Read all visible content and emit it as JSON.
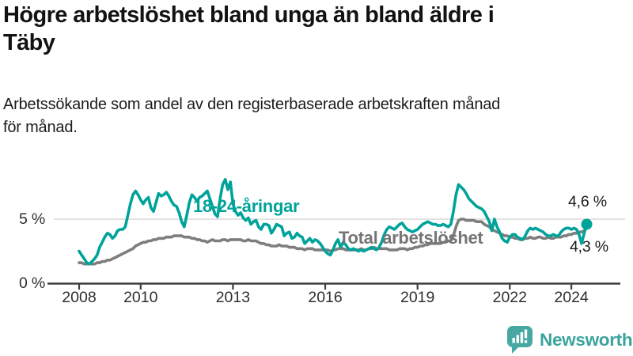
{
  "header": {
    "title": "Högre arbetslöshet bland unga än bland äldre i\nTäby",
    "subtitle": "Arbetssökande som andel av den registerbaserade arbetskraften månad\nför månad."
  },
  "chart_data": {
    "type": "line",
    "unit": "%",
    "frequency": "monthly",
    "x_start": "2008-01",
    "x_end": "2024-07",
    "grid": "horizontal-5-only",
    "ylim": [
      0,
      8.8
    ],
    "yticks": [
      {
        "value": 0,
        "label": "0 %"
      },
      {
        "value": 5,
        "label": "5 %"
      }
    ],
    "xticks": [
      "2008",
      "2010",
      "2013",
      "2016",
      "2019",
      "2022",
      "2024"
    ],
    "gridline_color": "#d9d9d9",
    "axis_color": "#3d3d3d",
    "tick_label_color": "#2f2f2f",
    "series": [
      {
        "name": "18-24-åringar",
        "color": "#00a39a",
        "end_label": "4,6 %",
        "end_value": 4.6,
        "end_dot": true,
        "values": [
          2.5,
          2.2,
          1.9,
          1.6,
          1.5,
          1.7,
          1.9,
          2.2,
          2.8,
          3.2,
          3.6,
          3.9,
          3.8,
          3.5,
          3.7,
          4.1,
          4.2,
          4.2,
          4.4,
          5.3,
          6.2,
          6.9,
          7.2,
          6.9,
          6.5,
          6.2,
          6.5,
          6.7,
          5.9,
          5.6,
          6.3,
          7.0,
          6.8,
          6.9,
          7.1,
          6.8,
          6.4,
          6.1,
          6.0,
          5.5,
          4.8,
          4.4,
          5.3,
          6.3,
          6.9,
          6.7,
          6.4,
          6.7,
          6.8,
          7.0,
          7.2,
          6.6,
          6.0,
          5.4,
          5.2,
          6.6,
          7.7,
          8.1,
          7.3,
          7.9,
          6.2,
          5.6,
          5.3,
          5.5,
          5.1,
          4.9,
          5.1,
          4.6,
          4.8,
          4.9,
          4.4,
          4.2,
          4.6,
          4.6,
          4.5,
          3.9,
          4.2,
          4.6,
          4.5,
          4.4,
          3.7,
          3.9,
          4.0,
          3.5,
          3.6,
          3.9,
          3.7,
          3.6,
          3.1,
          3.3,
          3.5,
          3.2,
          3.4,
          3.3,
          3.1,
          2.8,
          2.5,
          2.3,
          2.2,
          2.6,
          3.1,
          3.4,
          2.8,
          3.2,
          3.0,
          2.7,
          2.6,
          2.7,
          2.6,
          2.5,
          2.6,
          2.5,
          2.6,
          2.7,
          2.8,
          2.7,
          2.6,
          2.8,
          3.2,
          3.8,
          4.2,
          4.4,
          4.3,
          4.2,
          4.4,
          4.6,
          4.7,
          4.4,
          4.2,
          4.1,
          4.0,
          4.1,
          4.2,
          4.4,
          4.6,
          4.7,
          4.8,
          4.7,
          4.6,
          4.6,
          4.5,
          4.5,
          4.6,
          4.5,
          4.4,
          4.6,
          5.6,
          6.9,
          7.7,
          7.5,
          7.3,
          7.0,
          6.6,
          6.4,
          6.2,
          6.0,
          5.9,
          5.8,
          5.6,
          5.2,
          4.8,
          4.1,
          5.0,
          4.4,
          4.0,
          3.5,
          3.3,
          3.2,
          3.6,
          3.8,
          3.8,
          3.6,
          3.5,
          3.4,
          3.7,
          4.1,
          4.3,
          4.2,
          4.3,
          4.2,
          4.1,
          4.0,
          3.8,
          3.7,
          3.7,
          3.8,
          3.7,
          3.7,
          4.0,
          4.2,
          4.3,
          4.3,
          4.2,
          4.3,
          4.2,
          3.8,
          3.1,
          3.9,
          4.6
        ]
      },
      {
        "name": "Total arbetslöshet",
        "color": "#7e7e7e",
        "label_color": "#757575",
        "end_label": "4,3 %",
        "end_value": 4.3,
        "end_dot": false,
        "values": [
          1.6,
          1.6,
          1.5,
          1.5,
          1.5,
          1.5,
          1.5,
          1.6,
          1.6,
          1.7,
          1.7,
          1.8,
          1.8,
          1.9,
          2.0,
          2.1,
          2.2,
          2.3,
          2.4,
          2.5,
          2.6,
          2.7,
          2.9,
          3.0,
          3.1,
          3.2,
          3.2,
          3.3,
          3.3,
          3.4,
          3.4,
          3.5,
          3.5,
          3.5,
          3.6,
          3.6,
          3.6,
          3.7,
          3.7,
          3.7,
          3.7,
          3.6,
          3.6,
          3.6,
          3.5,
          3.5,
          3.4,
          3.4,
          3.3,
          3.3,
          3.2,
          3.3,
          3.4,
          3.3,
          3.3,
          3.3,
          3.4,
          3.4,
          3.3,
          3.4,
          3.4,
          3.4,
          3.4,
          3.4,
          3.3,
          3.3,
          3.4,
          3.3,
          3.3,
          3.3,
          3.2,
          3.1,
          3.1,
          3.0,
          3.0,
          2.9,
          2.9,
          2.9,
          3.0,
          2.9,
          2.9,
          2.9,
          2.8,
          2.8,
          2.8,
          2.7,
          2.7,
          2.7,
          2.6,
          2.7,
          2.7,
          2.7,
          2.6,
          2.6,
          2.6,
          2.6,
          2.6,
          2.6,
          2.5,
          2.6,
          2.6,
          2.7,
          2.7,
          2.7,
          2.6,
          2.6,
          2.6,
          2.6,
          2.6,
          2.6,
          2.7,
          2.6,
          2.6,
          2.7,
          2.7,
          2.8,
          2.7,
          2.7,
          2.7,
          2.7,
          2.7,
          2.6,
          2.6,
          2.6,
          2.6,
          2.7,
          2.7,
          2.7,
          2.6,
          2.7,
          2.7,
          2.8,
          2.8,
          2.9,
          2.9,
          3.0,
          3.0,
          3.1,
          3.1,
          3.1,
          3.1,
          3.1,
          3.2,
          3.2,
          3.3,
          3.3,
          3.7,
          4.4,
          4.9,
          5.0,
          5.0,
          4.9,
          4.9,
          4.9,
          4.9,
          4.8,
          4.8,
          4.8,
          4.6,
          4.5,
          4.4,
          4.2,
          4.1,
          4.0,
          3.9,
          3.8,
          3.7,
          3.7,
          3.6,
          3.6,
          3.5,
          3.5,
          3.4,
          3.4,
          3.5,
          3.5,
          3.6,
          3.5,
          3.5,
          3.6,
          3.6,
          3.5,
          3.5,
          3.6,
          3.5,
          3.5,
          3.6,
          3.6,
          3.6,
          3.7,
          3.7,
          3.8,
          3.8,
          3.9,
          3.9,
          4.0,
          4.0,
          4.1,
          4.3
        ]
      }
    ]
  },
  "footer": {
    "brand": "Newsworthy",
    "brand_color": "#3ba39d",
    "icon_color": "#47a8a3"
  }
}
